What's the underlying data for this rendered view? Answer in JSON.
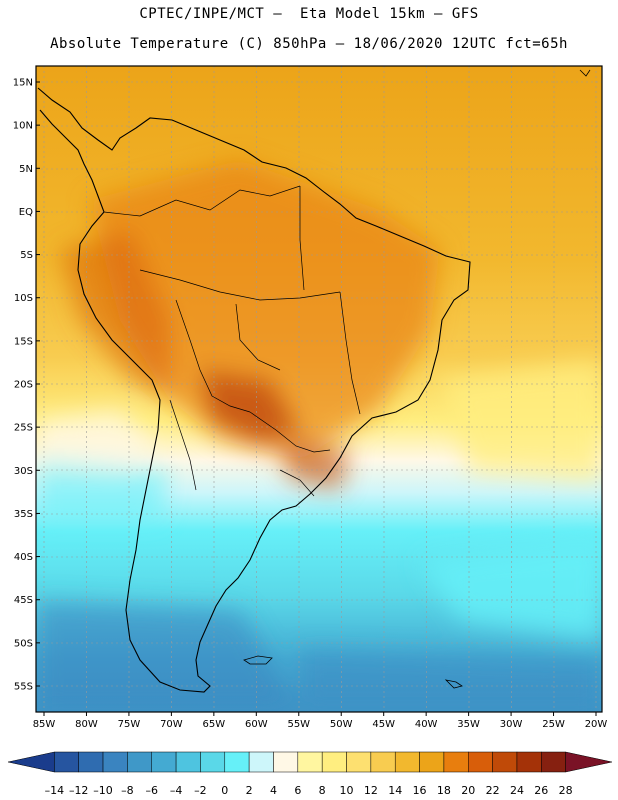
{
  "header": {
    "line1": "CPTEC/INPE/MCT –  Eta Model 15km – GFS",
    "line2": "Absolute Temperature (C) 850hPa – 18/06/2020 12UTC fct=65h"
  },
  "map": {
    "lon_labels": [
      "85W",
      "80W",
      "75W",
      "70W",
      "65W",
      "60W",
      "55W",
      "50W",
      "45W",
      "40W",
      "35W",
      "30W",
      "25W",
      "20W"
    ],
    "lat_labels": [
      "15N",
      "10N",
      "5N",
      "EQ",
      "5S",
      "10S",
      "15S",
      "20S",
      "25S",
      "30S",
      "35S",
      "40S",
      "45S",
      "50S",
      "55S"
    ]
  },
  "colorbar": {
    "labels": [
      "–14",
      "–12",
      "–10",
      "–8",
      "–6",
      "–4",
      "–2",
      "0",
      "2",
      "4",
      "6",
      "8",
      "10",
      "12",
      "14",
      "16",
      "18",
      "20",
      "22",
      "24",
      "26",
      "28"
    ],
    "colors": [
      "#1a3c8c",
      "#2655a0",
      "#2f6cb0",
      "#3a84c0",
      "#3f98c8",
      "#44aad2",
      "#4ec4e0",
      "#5ad8e8",
      "#66f0f8",
      "#cdf6fa",
      "#fff8e6",
      "#fff6a0",
      "#ffee80",
      "#fde070",
      "#f8cc50",
      "#f2b82e",
      "#eca419",
      "#e87e0e",
      "#d85e0a",
      "#c04a08",
      "#a43208",
      "#862010",
      "#7a1226"
    ]
  }
}
